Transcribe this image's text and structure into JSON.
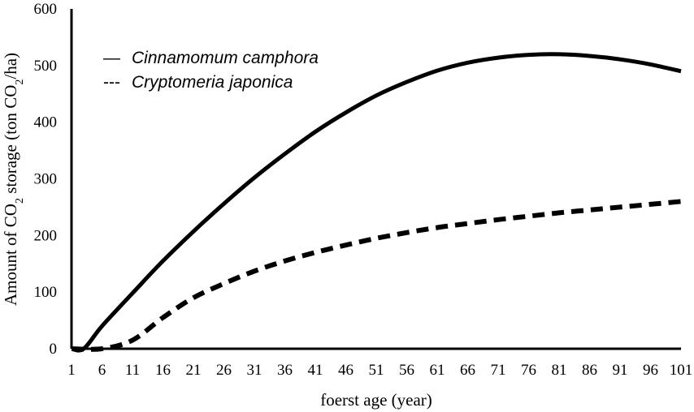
{
  "chart_data": {
    "type": "line",
    "xlabel": "foerst age (year)",
    "ylabel": {
      "p1": "Amount of CO",
      "sub1": "2",
      "p2": " storage (ton CO",
      "sub2": "2",
      "p3": "/ha)"
    },
    "xlim": [
      1,
      101
    ],
    "ylim": [
      0,
      600
    ],
    "x_ticks": [
      1,
      6,
      11,
      16,
      21,
      26,
      31,
      36,
      41,
      46,
      51,
      56,
      61,
      66,
      71,
      76,
      81,
      86,
      91,
      96,
      101
    ],
    "y_ticks": [
      0,
      100,
      200,
      300,
      400,
      500,
      600
    ],
    "grid": false,
    "legend_position": "top-left",
    "series": [
      {
        "name": "Cinnamomum camphora",
        "legend_marker": "—",
        "style": "solid",
        "color": "#000000",
        "x": [
          1,
          3,
          6,
          11,
          16,
          21,
          26,
          31,
          36,
          41,
          46,
          51,
          56,
          61,
          66,
          71,
          76,
          81,
          86,
          91,
          96,
          101
        ],
        "y": [
          0,
          0,
          40,
          98,
          155,
          207,
          256,
          302,
          344,
          383,
          417,
          447,
          471,
          491,
          505,
          514,
          519,
          520,
          517,
          511,
          502,
          490
        ]
      },
      {
        "name": "Cryptomeria japonica",
        "legend_marker": "---",
        "style": "dashed",
        "color": "#000000",
        "x": [
          1,
          6,
          11,
          16,
          21,
          26,
          31,
          36,
          41,
          46,
          51,
          56,
          61,
          66,
          71,
          76,
          81,
          86,
          91,
          96,
          101
        ],
        "y": [
          0,
          0,
          15,
          55,
          90,
          115,
          137,
          155,
          170,
          183,
          195,
          205,
          214,
          221,
          228,
          234,
          240,
          245,
          250,
          255,
          260
        ]
      }
    ]
  }
}
